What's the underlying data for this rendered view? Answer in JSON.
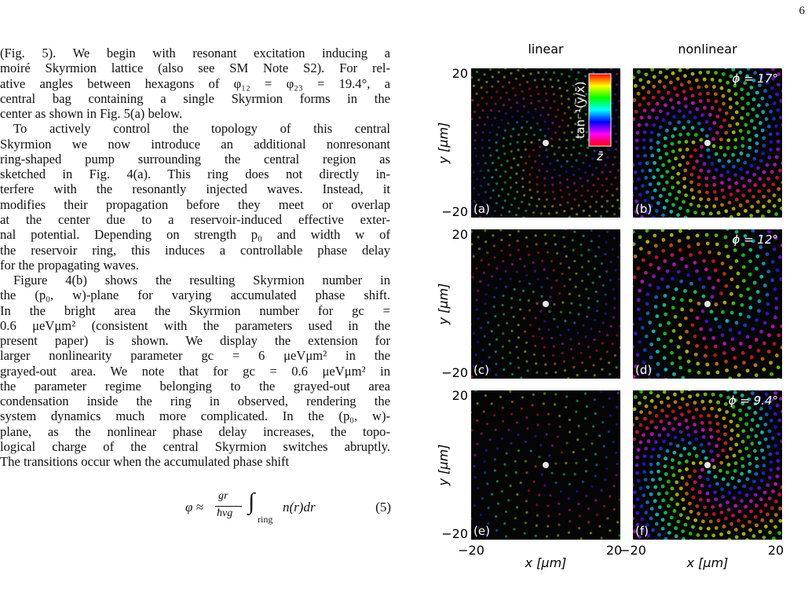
{
  "page_number": "6",
  "paragraphs": [
    [
      "(Fig. 5). We begin with resonant excitation inducing a",
      "moiré Skyrmion lattice (also see SM Note S2). For rel-",
      "ative angles between hexagons of φ₁₂ = φ₂₃ = 19.4°, a",
      "central bag containing a single Skyrmion forms in the",
      "center as shown in Fig. 5(a) below."
    ],
    [
      "To actively control the topology of this central",
      "Skyrmion we now introduce an additional nonresonant",
      "ring-shaped pump surrounding the central region as",
      "sketched in Fig. 4(a).  This ring does not directly in-",
      "terfere with the resonantly injected waves. Instead, it",
      "modifies their propagation before they meet or overlap",
      "at the center due to a reservoir-induced effective exter-",
      "nal potential. Depending on strength p₀ and width w of",
      "the reservoir ring, this induces a controllable phase delay",
      "for the propagating waves."
    ],
    [
      "Figure 4(b) shows the resulting Skyrmion number in",
      "the (p₀, w)-plane for varying accumulated phase shift.",
      "In the bright area the Skyrmion number for gc =",
      "0.6 μeVμm² (consistent with the parameters used in the",
      "present paper) is shown.  We display the extension for",
      "larger nonlinearity parameter gc = 6 μeVμm² in the",
      "grayed-out area. We note that for gc = 0.6 μeVμm² in",
      "the parameter regime belonging to the grayed-out area",
      "condensation inside the ring in observed, rendering the",
      "system dynamics much more complicated. In the (p₀, w)-",
      "plane, as the nonlinear phase delay increases, the topo-",
      "logical charge of the central Skyrmion switches abruptly.",
      "The transitions occur when the accumulated phase shift"
    ]
  ],
  "equation": {
    "lhs": "φ ≈",
    "numerator": "gr",
    "denominator": "ħvg",
    "integral": "∫",
    "subscript": "ring",
    "integrand": "n(r)dr",
    "number": "(5)"
  },
  "figure": {
    "columns": [
      "linear",
      "nonlinear"
    ],
    "colorbar": {
      "label": "tan⁻¹(ȳ/x̄)",
      "bottom": "z̄"
    },
    "rows": [
      {
        "y_label": "y [μm]",
        "y_ticks": [
          "20",
          "−20"
        ],
        "panels": [
          {
            "label": "(a)"
          },
          {
            "label": "(b)",
            "phi": "ϕ = 17°"
          }
        ]
      },
      {
        "y_label": "y [μm]",
        "y_ticks": [
          "20",
          "−20"
        ],
        "panels": [
          {
            "label": "(c)"
          },
          {
            "label": "(d)",
            "phi": "ϕ = 12°"
          }
        ]
      },
      {
        "y_label": "y [μm]",
        "y_ticks": [
          "20",
          "−20"
        ],
        "panels": [
          {
            "label": "(e)"
          },
          {
            "label": "(f)",
            "phi": "ϕ = 9.4°"
          }
        ]
      }
    ],
    "x_axes": [
      {
        "ticks": [
          "−20",
          "20"
        ],
        "label": "x [μm]"
      },
      {
        "ticks": [
          "−20",
          "20"
        ],
        "label": "x [μm]"
      }
    ]
  }
}
